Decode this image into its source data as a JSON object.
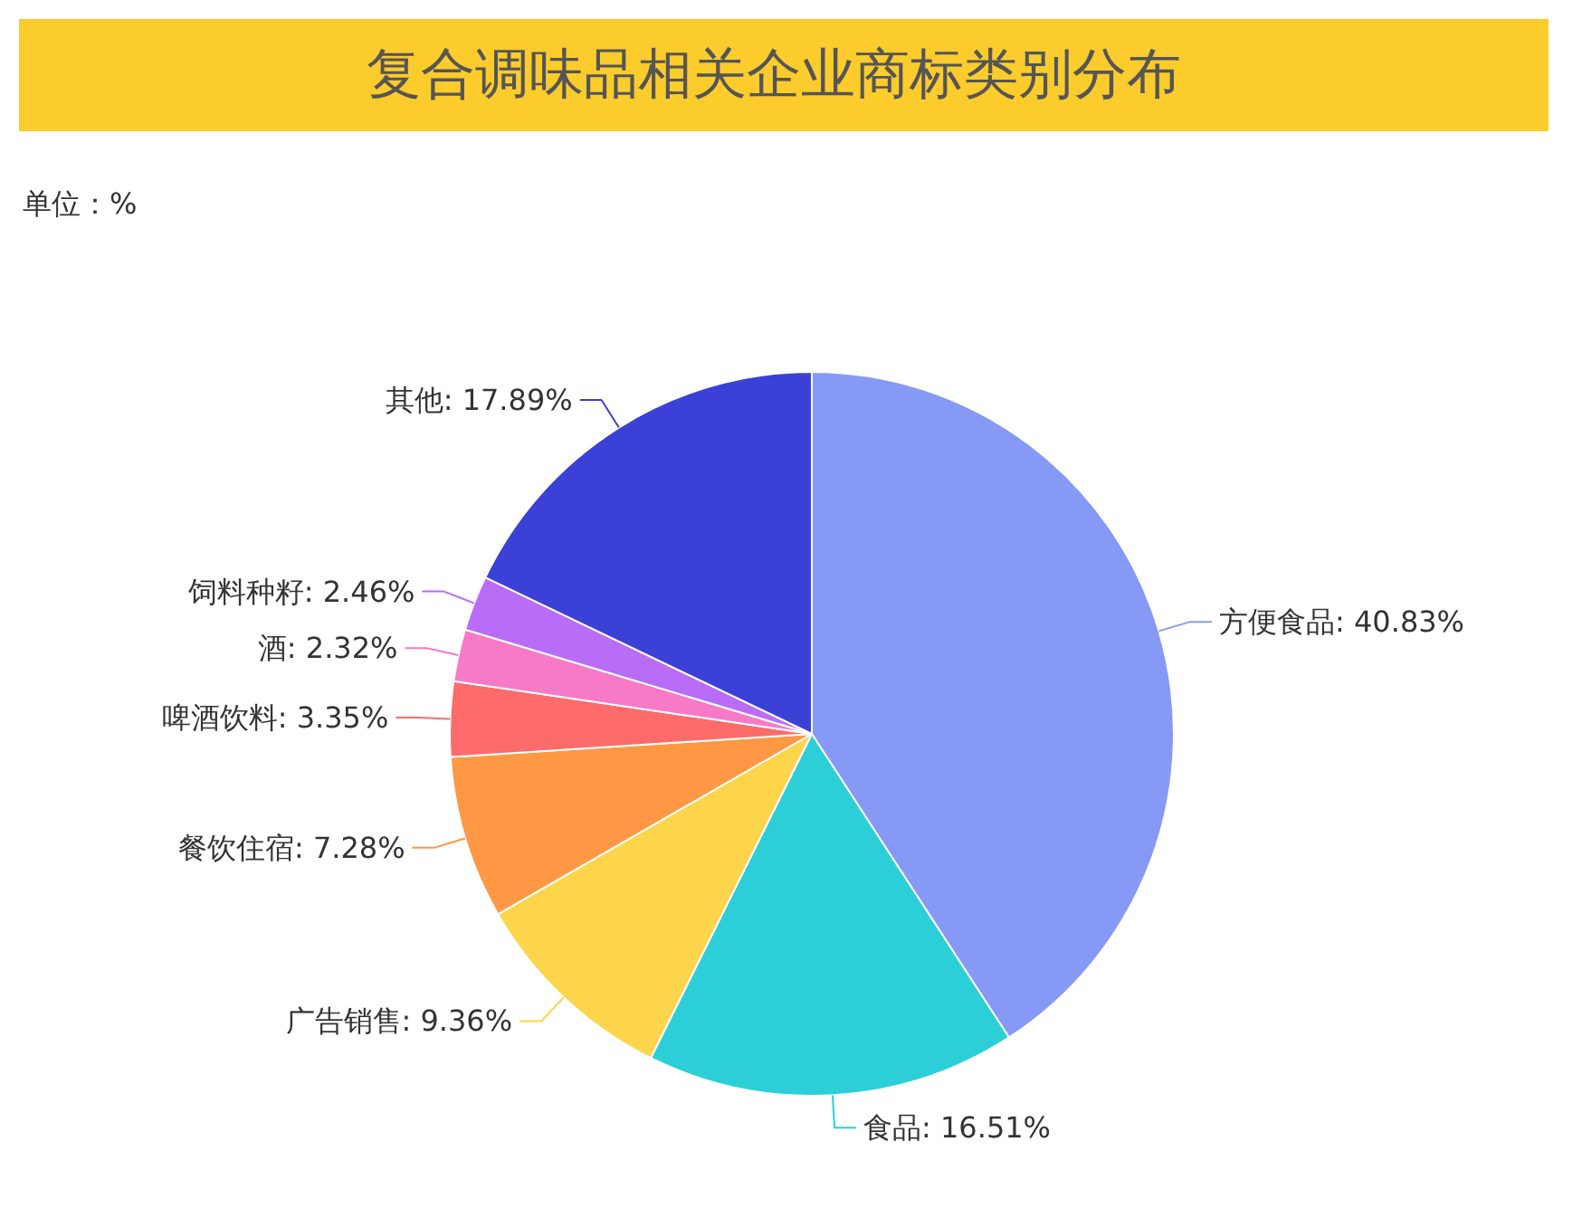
{
  "chart_data": {
    "type": "pie",
    "title": "复合调味品相关企业商标类别分布",
    "subtitle": "单位：%",
    "categories": [
      "方便食品",
      "食品",
      "广告销售",
      "餐饮住宿",
      "啤酒饮料",
      "酒",
      "饲料种籽",
      "其他"
    ],
    "values": [
      40.83,
      16.51,
      9.36,
      7.28,
      3.35,
      2.32,
      2.46,
      17.89
    ],
    "value_labels": [
      "40.83%",
      "16.51%",
      "9.36%",
      "7.28%",
      "3.35%",
      "2.32%",
      "2.46%",
      "17.89%"
    ],
    "colors": [
      "#8599f5",
      "#2ccfd8",
      "#fdd54b",
      "#ff9845",
      "#fe6b6b",
      "#f77ac8",
      "#b86cf7",
      "#3b40d6"
    ]
  }
}
